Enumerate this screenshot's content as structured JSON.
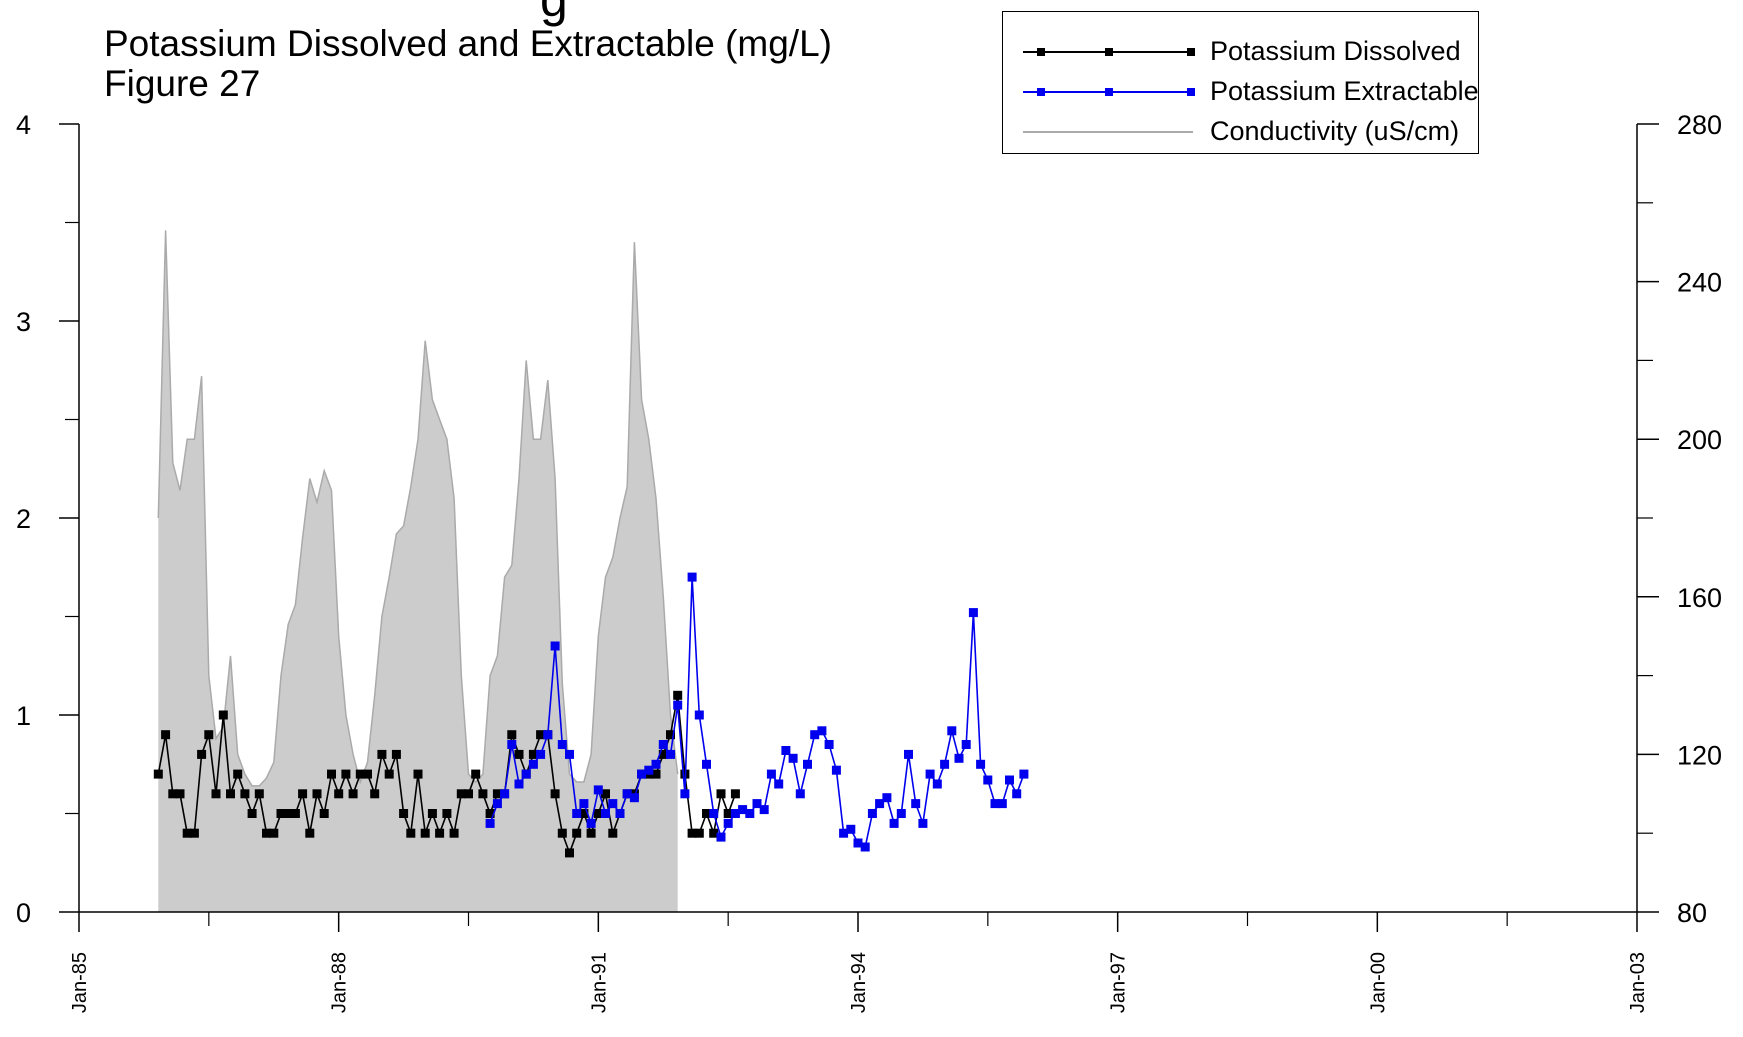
{
  "header": {
    "title_partial": "g",
    "subtitle": "Potassium Dissolved and Extractable (mg/L)",
    "figure_label": "Figure 27"
  },
  "legend": {
    "position": "top-right",
    "items": [
      {
        "label": "Potassium Dissolved",
        "color": "#000000",
        "marker": "square",
        "style": "line-marker"
      },
      {
        "label": "Potassium Extractable",
        "color": "#0000ee",
        "marker": "square",
        "style": "line-marker"
      },
      {
        "label": "Conductivity (uS/cm)",
        "color": "#aaaaaa",
        "fill": "#cccccc",
        "style": "area"
      }
    ]
  },
  "chart_data": {
    "type": "line",
    "x_axis": {
      "range": [
        "1985-01",
        "2003-01"
      ],
      "tick_labels": [
        "Jan-85",
        "Jan-88",
        "Jan-91",
        "Jan-94",
        "Jan-97",
        "Jan-00",
        "Jan-03"
      ],
      "tick_dates": [
        "1985-01",
        "1988-01",
        "1991-01",
        "1994-01",
        "1997-01",
        "2000-01",
        "2003-01"
      ],
      "minor_tick_dates": [
        "1986-07",
        "1989-07",
        "1992-07",
        "1995-07",
        "1998-07",
        "2001-07"
      ]
    },
    "y_left": {
      "range": [
        0,
        4
      ],
      "tick_labels": [
        "0",
        "1",
        "2",
        "3",
        "4"
      ],
      "ticks": [
        0,
        1,
        2,
        3,
        4
      ],
      "minor_ticks": [
        0.5,
        1.5,
        2.5,
        3.5
      ]
    },
    "y_right": {
      "range": [
        80,
        280
      ],
      "tick_labels": [
        "80",
        "120",
        "160",
        "200",
        "240",
        "280"
      ],
      "ticks": [
        80,
        120,
        160,
        200,
        240,
        280
      ],
      "minor_ticks": [
        100,
        140,
        180,
        220,
        260
      ]
    },
    "series": [
      {
        "name": "Potassium Dissolved",
        "axis": "left",
        "color": "#000000",
        "points": [
          [
            "1985-12",
            0.7
          ],
          [
            "1986-01",
            0.9
          ],
          [
            "1986-02",
            0.6
          ],
          [
            "1986-03",
            0.6
          ],
          [
            "1986-04",
            0.4
          ],
          [
            "1986-05",
            0.4
          ],
          [
            "1986-06",
            0.8
          ],
          [
            "1986-07",
            0.9
          ],
          [
            "1986-08",
            0.6
          ],
          [
            "1986-09",
            1.0
          ],
          [
            "1986-10",
            0.6
          ],
          [
            "1986-11",
            0.7
          ],
          [
            "1986-12",
            0.6
          ],
          [
            "1987-01",
            0.5
          ],
          [
            "1987-02",
            0.6
          ],
          [
            "1987-03",
            0.4
          ],
          [
            "1987-04",
            0.4
          ],
          [
            "1987-05",
            0.5
          ],
          [
            "1987-06",
            0.5
          ],
          [
            "1987-07",
            0.5
          ],
          [
            "1987-08",
            0.6
          ],
          [
            "1987-09",
            0.4
          ],
          [
            "1987-10",
            0.6
          ],
          [
            "1987-11",
            0.5
          ],
          [
            "1987-12",
            0.7
          ],
          [
            "1988-01",
            0.6
          ],
          [
            "1988-02",
            0.7
          ],
          [
            "1988-03",
            0.6
          ],
          [
            "1988-04",
            0.7
          ],
          [
            "1988-05",
            0.7
          ],
          [
            "1988-06",
            0.6
          ],
          [
            "1988-07",
            0.8
          ],
          [
            "1988-08",
            0.7
          ],
          [
            "1988-09",
            0.8
          ],
          [
            "1988-10",
            0.5
          ],
          [
            "1988-11",
            0.4
          ],
          [
            "1988-12",
            0.7
          ],
          [
            "1989-01",
            0.4
          ],
          [
            "1989-02",
            0.5
          ],
          [
            "1989-03",
            0.4
          ],
          [
            "1989-04",
            0.5
          ],
          [
            "1989-05",
            0.4
          ],
          [
            "1989-06",
            0.6
          ],
          [
            "1989-07",
            0.6
          ],
          [
            "1989-08",
            0.7
          ],
          [
            "1989-09",
            0.6
          ],
          [
            "1989-10",
            0.5
          ],
          [
            "1989-11",
            0.6
          ],
          [
            "1989-12",
            0.6
          ],
          [
            "1990-01",
            0.9
          ],
          [
            "1990-02",
            0.8
          ],
          [
            "1990-03",
            0.7
          ],
          [
            "1990-04",
            0.8
          ],
          [
            "1990-05",
            0.9
          ],
          [
            "1990-06",
            0.9
          ],
          [
            "1990-07",
            0.6
          ],
          [
            "1990-08",
            0.4
          ],
          [
            "1990-09",
            0.3
          ],
          [
            "1990-10",
            0.4
          ],
          [
            "1990-11",
            0.5
          ],
          [
            "1990-12",
            0.4
          ],
          [
            "1991-01",
            0.5
          ],
          [
            "1991-02",
            0.6
          ],
          [
            "1991-03",
            0.4
          ],
          [
            "1991-04",
            0.5
          ],
          [
            "1991-05",
            0.6
          ],
          [
            "1991-06",
            0.6
          ],
          [
            "1991-07",
            0.7
          ],
          [
            "1991-08",
            0.7
          ],
          [
            "1991-09",
            0.7
          ],
          [
            "1991-10",
            0.8
          ],
          [
            "1991-11",
            0.9
          ],
          [
            "1991-12",
            1.1
          ],
          [
            "1992-01",
            0.7
          ],
          [
            "1992-02",
            0.4
          ],
          [
            "1992-03",
            0.4
          ],
          [
            "1992-04",
            0.5
          ],
          [
            "1992-05",
            0.4
          ],
          [
            "1992-06",
            0.6
          ],
          [
            "1992-07",
            0.5
          ],
          [
            "1992-08",
            0.6
          ]
        ]
      },
      {
        "name": "Potassium Extractable",
        "axis": "left",
        "color": "#0000ee",
        "points": [
          [
            "1989-10",
            0.45
          ],
          [
            "1989-11",
            0.55
          ],
          [
            "1989-12",
            0.6
          ],
          [
            "1990-01",
            0.85
          ],
          [
            "1990-02",
            0.65
          ],
          [
            "1990-03",
            0.7
          ],
          [
            "1990-04",
            0.75
          ],
          [
            "1990-05",
            0.8
          ],
          [
            "1990-06",
            0.9
          ],
          [
            "1990-07",
            1.35
          ],
          [
            "1990-08",
            0.85
          ],
          [
            "1990-09",
            0.8
          ],
          [
            "1990-10",
            0.5
          ],
          [
            "1990-11",
            0.55
          ],
          [
            "1990-12",
            0.45
          ],
          [
            "1991-01",
            0.62
          ],
          [
            "1991-02",
            0.5
          ],
          [
            "1991-03",
            0.55
          ],
          [
            "1991-04",
            0.5
          ],
          [
            "1991-05",
            0.6
          ],
          [
            "1991-06",
            0.58
          ],
          [
            "1991-07",
            0.7
          ],
          [
            "1991-08",
            0.72
          ],
          [
            "1991-09",
            0.75
          ],
          [
            "1991-10",
            0.85
          ],
          [
            "1991-11",
            0.8
          ],
          [
            "1991-12",
            1.05
          ],
          [
            "1992-01",
            0.6
          ],
          [
            "1992-02",
            1.7
          ],
          [
            "1992-03",
            1.0
          ],
          [
            "1992-04",
            0.75
          ],
          [
            "1992-05",
            0.5
          ],
          [
            "1992-06",
            0.38
          ],
          [
            "1992-07",
            0.45
          ],
          [
            "1992-08",
            0.5
          ],
          [
            "1992-09",
            0.52
          ],
          [
            "1992-10",
            0.5
          ],
          [
            "1992-11",
            0.55
          ],
          [
            "1992-12",
            0.52
          ],
          [
            "1993-01",
            0.7
          ],
          [
            "1993-02",
            0.65
          ],
          [
            "1993-03",
            0.82
          ],
          [
            "1993-04",
            0.78
          ],
          [
            "1993-05",
            0.6
          ],
          [
            "1993-06",
            0.75
          ],
          [
            "1993-07",
            0.9
          ],
          [
            "1993-08",
            0.92
          ],
          [
            "1993-09",
            0.85
          ],
          [
            "1993-10",
            0.72
          ],
          [
            "1993-11",
            0.4
          ],
          [
            "1993-12",
            0.42
          ],
          [
            "1994-01",
            0.35
          ],
          [
            "1994-02",
            0.33
          ],
          [
            "1994-03",
            0.5
          ],
          [
            "1994-04",
            0.55
          ],
          [
            "1994-05",
            0.58
          ],
          [
            "1994-06",
            0.45
          ],
          [
            "1994-07",
            0.5
          ],
          [
            "1994-08",
            0.8
          ],
          [
            "1994-09",
            0.55
          ],
          [
            "1994-10",
            0.45
          ],
          [
            "1994-11",
            0.7
          ],
          [
            "1994-12",
            0.65
          ],
          [
            "1995-01",
            0.75
          ],
          [
            "1995-02",
            0.92
          ],
          [
            "1995-03",
            0.78
          ],
          [
            "1995-04",
            0.85
          ],
          [
            "1995-05",
            1.52
          ],
          [
            "1995-06",
            0.75
          ],
          [
            "1995-07",
            0.67
          ],
          [
            "1995-08",
            0.55
          ],
          [
            "1995-09",
            0.55
          ],
          [
            "1995-10",
            0.67
          ],
          [
            "1995-11",
            0.6
          ],
          [
            "1995-12",
            0.7
          ]
        ]
      },
      {
        "name": "Conductivity (uS/cm)",
        "axis": "right",
        "color": "#aaaaaa",
        "fill": "#cccccc",
        "points": [
          [
            "1985-12",
            180
          ],
          [
            "1986-01",
            253
          ],
          [
            "1986-02",
            194
          ],
          [
            "1986-03",
            187
          ],
          [
            "1986-04",
            200
          ],
          [
            "1986-05",
            200
          ],
          [
            "1986-06",
            216
          ],
          [
            "1986-07",
            140
          ],
          [
            "1986-08",
            124
          ],
          [
            "1986-09",
            127
          ],
          [
            "1986-10",
            145
          ],
          [
            "1986-11",
            120
          ],
          [
            "1986-12",
            115
          ],
          [
            "1987-01",
            112
          ],
          [
            "1987-02",
            112
          ],
          [
            "1987-03",
            114
          ],
          [
            "1987-04",
            118
          ],
          [
            "1987-05",
            140
          ],
          [
            "1987-06",
            153
          ],
          [
            "1987-07",
            158
          ],
          [
            "1987-08",
            175
          ],
          [
            "1987-09",
            190
          ],
          [
            "1987-10",
            184
          ],
          [
            "1987-11",
            192
          ],
          [
            "1987-12",
            187
          ],
          [
            "1988-01",
            150
          ],
          [
            "1988-02",
            130
          ],
          [
            "1988-03",
            120
          ],
          [
            "1988-04",
            113
          ],
          [
            "1988-05",
            118
          ],
          [
            "1988-06",
            135
          ],
          [
            "1988-07",
            155
          ],
          [
            "1988-08",
            165
          ],
          [
            "1988-09",
            176
          ],
          [
            "1988-10",
            178
          ],
          [
            "1988-11",
            188
          ],
          [
            "1988-12",
            200
          ],
          [
            "1989-01",
            225
          ],
          [
            "1989-02",
            210
          ],
          [
            "1989-03",
            205
          ],
          [
            "1989-04",
            200
          ],
          [
            "1989-05",
            185
          ],
          [
            "1989-06",
            140
          ],
          [
            "1989-07",
            115
          ],
          [
            "1989-08",
            113
          ],
          [
            "1989-09",
            115
          ],
          [
            "1989-10",
            140
          ],
          [
            "1989-11",
            145
          ],
          [
            "1989-12",
            165
          ],
          [
            "1990-01",
            168
          ],
          [
            "1990-02",
            190
          ],
          [
            "1990-03",
            220
          ],
          [
            "1990-04",
            200
          ],
          [
            "1990-05",
            200
          ],
          [
            "1990-06",
            215
          ],
          [
            "1990-07",
            190
          ],
          [
            "1990-08",
            138
          ],
          [
            "1990-09",
            115
          ],
          [
            "1990-10",
            113
          ],
          [
            "1990-11",
            113
          ],
          [
            "1990-12",
            120
          ],
          [
            "1991-01",
            150
          ],
          [
            "1991-02",
            165
          ],
          [
            "1991-03",
            170
          ],
          [
            "1991-04",
            180
          ],
          [
            "1991-05",
            188
          ],
          [
            "1991-06",
            250
          ],
          [
            "1991-07",
            210
          ],
          [
            "1991-08",
            200
          ],
          [
            "1991-09",
            185
          ],
          [
            "1991-10",
            160
          ],
          [
            "1991-11",
            130
          ],
          [
            "1991-12",
            115
          ]
        ]
      }
    ]
  }
}
